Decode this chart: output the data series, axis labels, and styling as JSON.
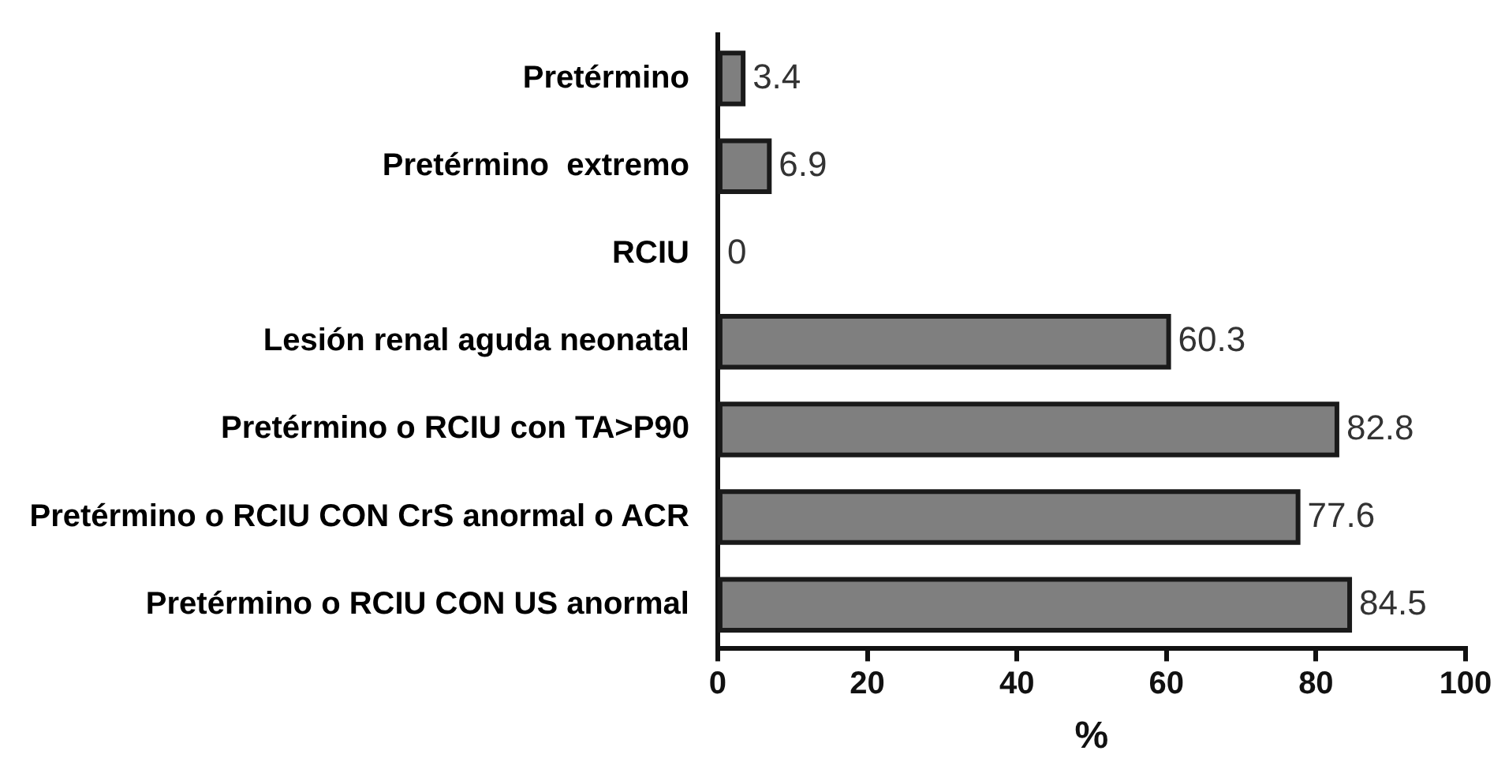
{
  "chart_data": {
    "type": "bar",
    "orientation": "horizontal",
    "xlabel": "%",
    "categories": [
      "Pretérmino",
      "Pretérmino  extremo",
      "RCIU",
      "Lesión renal aguda neonatal",
      "Pretérmino o RCIU con TA>P90",
      "Pretérmino o RCIU CON CrS anormal o ACR",
      "Pretérmino o RCIU CON US anormal"
    ],
    "values": [
      3.4,
      6.9,
      0,
      60.3,
      82.8,
      77.6,
      84.5
    ],
    "color": "#7f7f7f",
    "xlim": [
      0,
      100
    ],
    "xticks": [
      0,
      20,
      40,
      60,
      80,
      100
    ],
    "data_labels": true
  }
}
